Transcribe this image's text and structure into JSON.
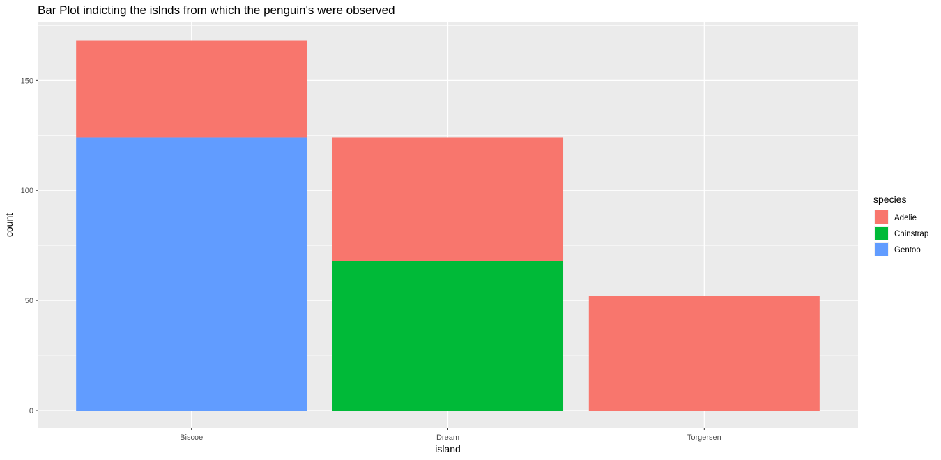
{
  "chart_data": {
    "type": "bar",
    "stacked": true,
    "title": "Bar Plot indicting the islnds from which the penguin's were observed",
    "xlabel": "island",
    "ylabel": "count",
    "categories": [
      "Biscoe",
      "Dream",
      "Torgersen"
    ],
    "series": [
      {
        "name": "Adelie",
        "color": "#F8766D",
        "values": [
          44,
          56,
          52
        ]
      },
      {
        "name": "Chinstrap",
        "color": "#00BA38",
        "values": [
          0,
          68,
          0
        ]
      },
      {
        "name": "Gentoo",
        "color": "#619CFF",
        "values": [
          124,
          0,
          0
        ]
      }
    ],
    "ylim": [
      0,
      176.4
    ],
    "yticks": [
      0,
      50,
      100,
      150
    ],
    "legend_title": "species",
    "legend_position": "right",
    "grid": true,
    "panel_background": "#EBEBEB"
  }
}
